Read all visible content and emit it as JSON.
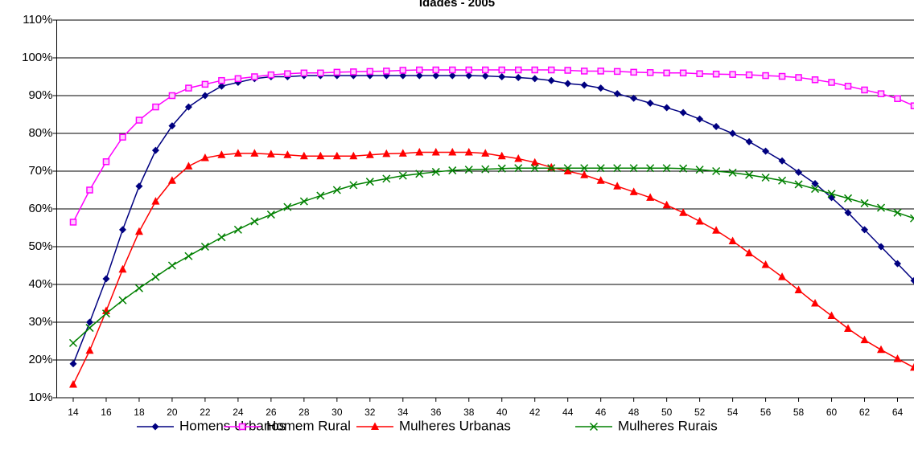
{
  "chart_data": {
    "type": "line",
    "title": "Idades - 2005",
    "x": [
      14,
      15,
      16,
      17,
      18,
      19,
      20,
      21,
      22,
      23,
      24,
      25,
      26,
      27,
      28,
      29,
      30,
      31,
      32,
      33,
      34,
      35,
      36,
      37,
      38,
      39,
      40,
      41,
      42,
      43,
      44,
      45,
      46,
      47,
      48,
      49,
      50,
      51,
      52,
      53,
      54,
      55,
      56,
      57,
      58,
      59,
      60,
      61,
      62,
      63,
      64,
      65
    ],
    "xlim": [
      13,
      65
    ],
    "xticks": [
      14,
      16,
      18,
      20,
      22,
      24,
      26,
      28,
      30,
      32,
      34,
      36,
      38,
      40,
      42,
      44,
      46,
      48,
      50,
      52,
      54,
      56,
      58,
      60,
      62,
      64
    ],
    "ylim": [
      10,
      110
    ],
    "yticks": [
      {
        "value": 10,
        "label": "10%"
      },
      {
        "value": 20,
        "label": "20%"
      },
      {
        "value": 30,
        "label": "30%"
      },
      {
        "value": 40,
        "label": "40%"
      },
      {
        "value": 50,
        "label": "50%"
      },
      {
        "value": 60,
        "label": "60%"
      },
      {
        "value": 70,
        "label": "70%"
      },
      {
        "value": 80,
        "label": "80%"
      },
      {
        "value": 90,
        "label": "90%"
      },
      {
        "value": 100,
        "label": "100%"
      },
      {
        "value": 110,
        "label": "110%"
      }
    ],
    "grid": true,
    "legend": "bottom",
    "series": [
      {
        "name": "Homens Urbanos",
        "color": "#000080",
        "marker": "diamond",
        "values": [
          19,
          30,
          41.5,
          54.5,
          66,
          75.5,
          82,
          87,
          90,
          92.5,
          93.5,
          94.5,
          95,
          95,
          95.3,
          95.3,
          95.3,
          95.3,
          95.3,
          95.3,
          95.3,
          95.3,
          95.3,
          95.3,
          95.3,
          95.2,
          95,
          94.8,
          94.5,
          94,
          93.2,
          92.8,
          92,
          90.5,
          89.3,
          88,
          86.8,
          85.5,
          83.8,
          81.8,
          80,
          77.8,
          75.3,
          72.7,
          69.7,
          66.7,
          63,
          59,
          54.5,
          50,
          45.5,
          41
        ]
      },
      {
        "name": "Homem Rural",
        "color": "#ff00ff",
        "marker": "square",
        "values": [
          56.5,
          65,
          72.5,
          79,
          83.5,
          87,
          90,
          92,
          93,
          94,
          94.5,
          95,
          95.5,
          95.8,
          96,
          96,
          96.2,
          96.3,
          96.4,
          96.5,
          96.7,
          96.8,
          96.8,
          96.8,
          96.8,
          96.8,
          96.8,
          96.8,
          96.8,
          96.8,
          96.7,
          96.5,
          96.5,
          96.4,
          96.2,
          96.1,
          96,
          96,
          95.8,
          95.7,
          95.6,
          95.5,
          95.3,
          95.1,
          94.8,
          94.2,
          93.5,
          92.5,
          91.5,
          90.5,
          89.2,
          87.3
        ]
      },
      {
        "name": "Mulheres Urbanas",
        "color": "#ff0000",
        "marker": "triangle",
        "values": [
          13.5,
          22.5,
          33,
          44,
          54,
          62,
          67.5,
          71.3,
          73.5,
          74.3,
          74.7,
          74.7,
          74.5,
          74.3,
          74,
          74,
          74,
          74,
          74.3,
          74.6,
          74.7,
          75,
          75,
          75,
          75,
          74.7,
          74,
          73.3,
          72.3,
          71,
          70,
          69,
          67.5,
          66,
          64.5,
          63,
          61,
          59,
          56.7,
          54.3,
          51.5,
          48.3,
          45.2,
          42,
          38.5,
          35,
          31.7,
          28.3,
          25.3,
          22.7,
          20.3,
          18
        ]
      },
      {
        "name": "Mulheres Rurais",
        "color": "#008000",
        "marker": "x",
        "values": [
          24.5,
          28.5,
          32.3,
          35.8,
          39,
          42,
          45,
          47.5,
          50,
          52.5,
          54.5,
          56.7,
          58.5,
          60.5,
          62,
          63.5,
          65,
          66.3,
          67.2,
          68,
          68.8,
          69.3,
          69.8,
          70.2,
          70.4,
          70.5,
          70.7,
          70.8,
          70.8,
          70.8,
          70.8,
          70.8,
          70.8,
          70.8,
          70.8,
          70.8,
          70.8,
          70.7,
          70.4,
          70,
          69.6,
          69,
          68.3,
          67.5,
          66.5,
          65.3,
          64,
          62.8,
          61.5,
          60.3,
          59,
          57.5
        ]
      }
    ]
  }
}
